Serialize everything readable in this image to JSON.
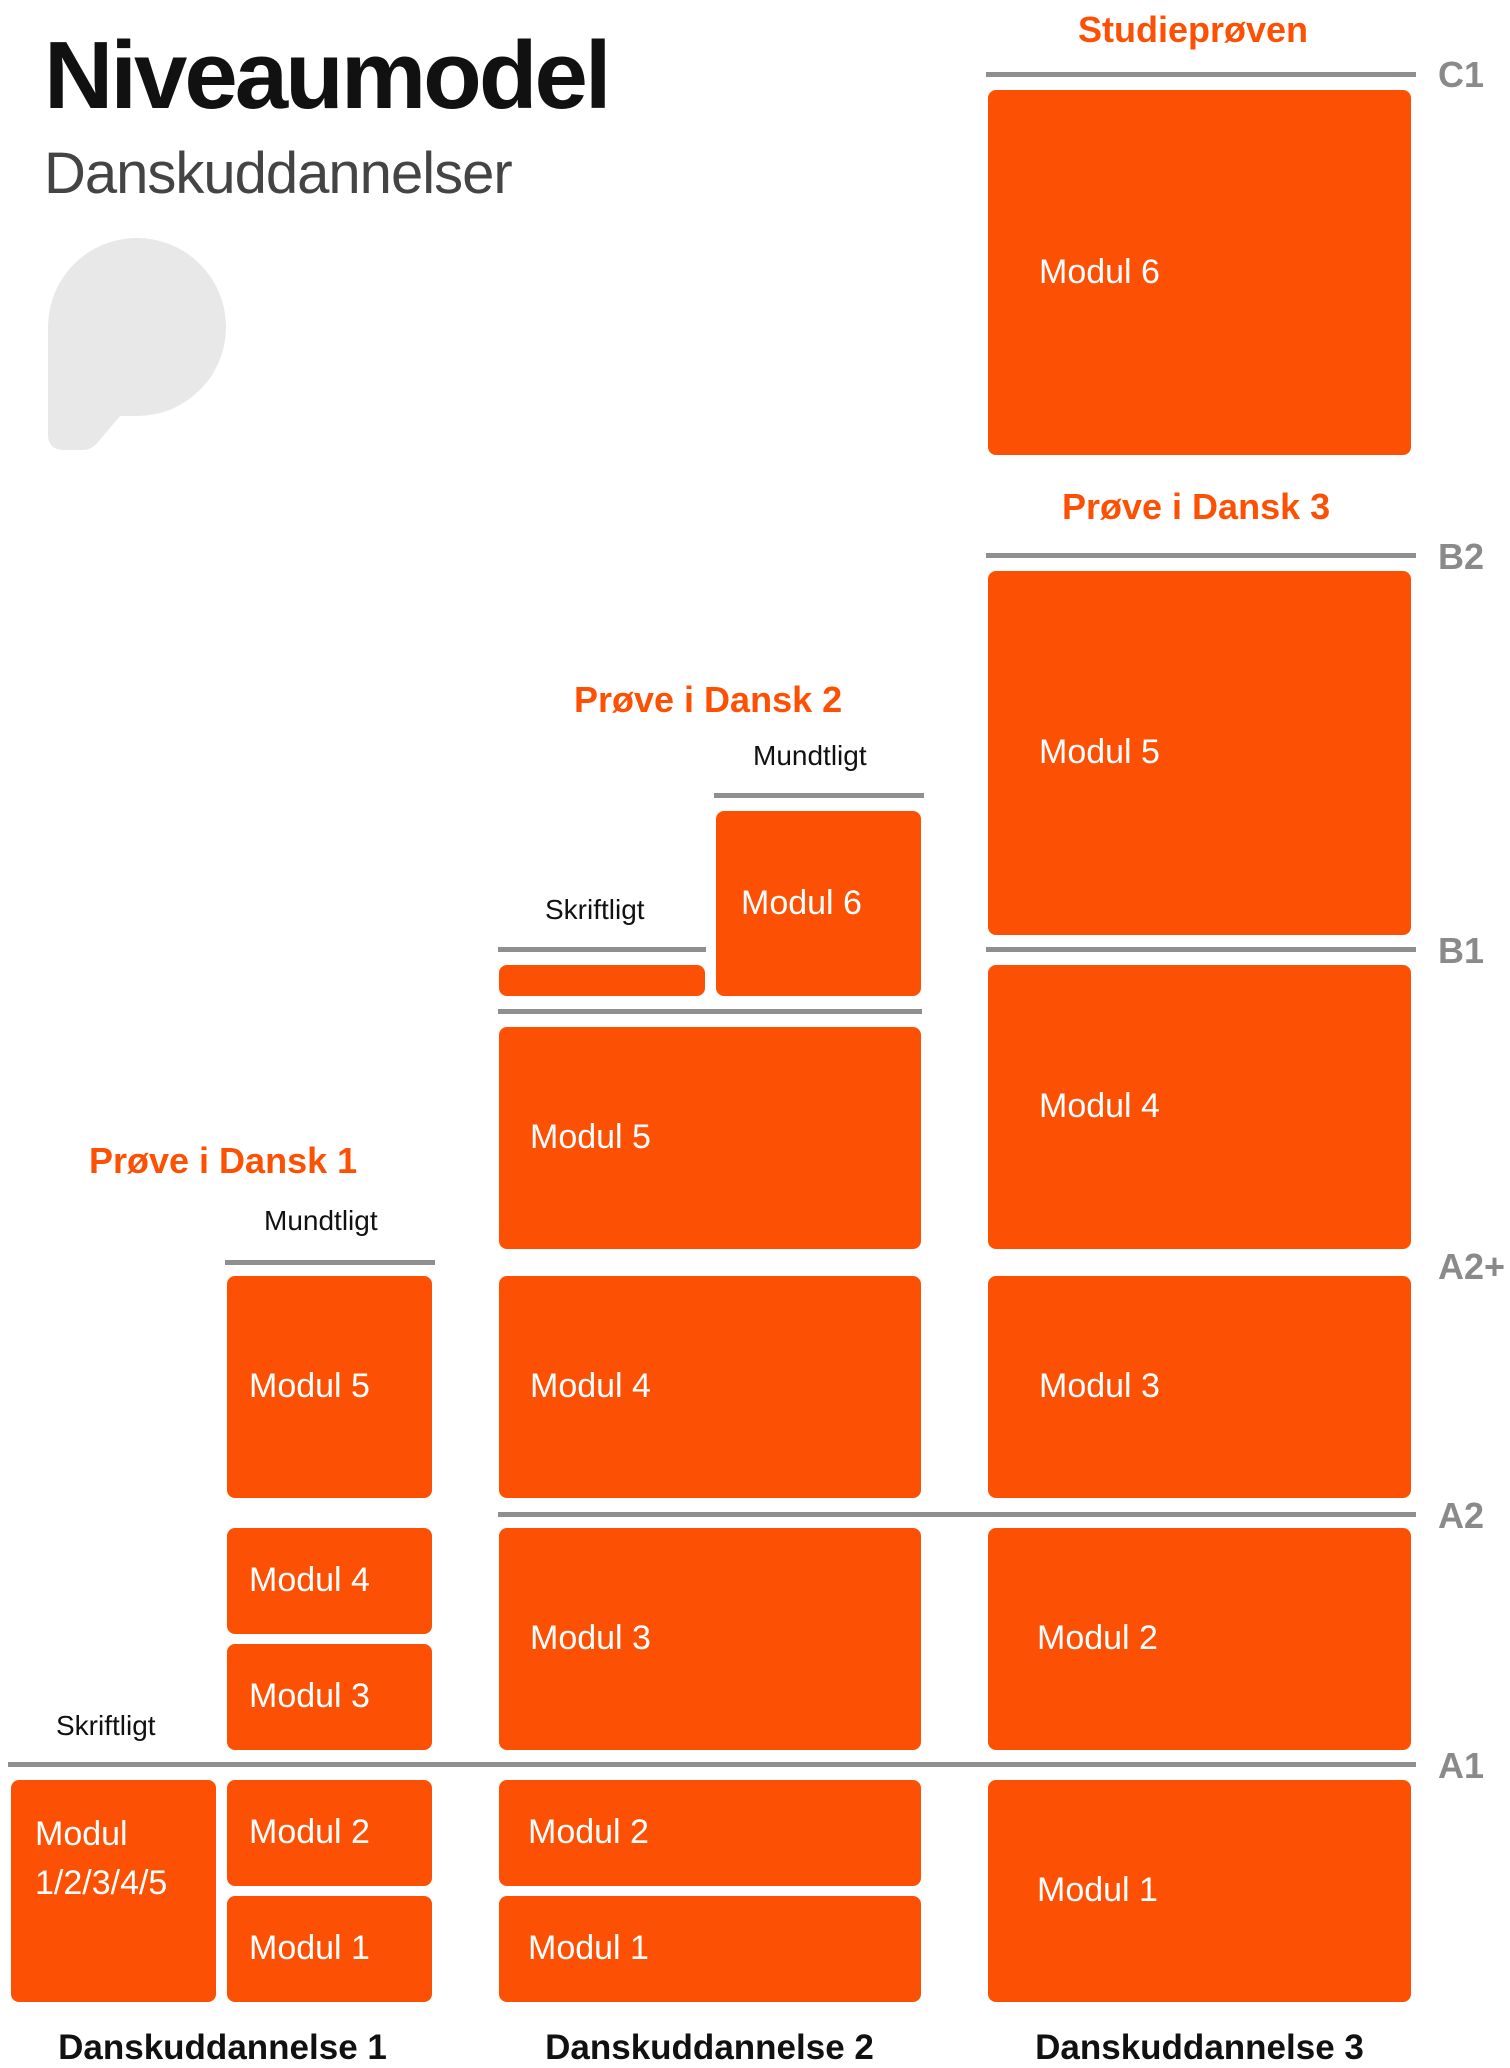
{
  "header": {
    "title": "Niveaumodel",
    "subtitle": "Danskuddannelser"
  },
  "colors": {
    "accent": "#fc5104",
    "line": "#8f8f8f",
    "logo": "#e8e8e8",
    "text": "#111111"
  },
  "levels": {
    "c1": "C1",
    "b2": "B2",
    "b1": "B1",
    "a2plus": "A2+",
    "a2": "A2",
    "a1": "A1"
  },
  "exams": {
    "studieproven": "Studieprøven",
    "dansk3": "Prøve i Dansk 3",
    "dansk2": "Prøve i Dansk 2",
    "dansk1": "Prøve i Dansk 1"
  },
  "exam_parts": {
    "du2_mundtligt": "Mundtligt",
    "du2_skriftligt": "Skriftligt",
    "du1_mundtligt": "Mundtligt",
    "du1_skriftligt": "Skriftligt"
  },
  "modules": {
    "du1_combined_line1": "Modul",
    "du1_combined_line2": "1/2/3/4/5",
    "du1_m1": "Modul 1",
    "du1_m2": "Modul 2",
    "du1_m3": "Modul 3",
    "du1_m4": "Modul 4",
    "du1_m5": "Modul 5",
    "du2_m1": "Modul 1",
    "du2_m2": "Modul 2",
    "du2_m3": "Modul 3",
    "du2_m4": "Modul 4",
    "du2_m5": "Modul 5",
    "du2_m6": "Modul 6",
    "du3_m1": "Modul 1",
    "du3_m2": "Modul 2",
    "du3_m3": "Modul 3",
    "du3_m4": "Modul 4",
    "du3_m5": "Modul 5",
    "du3_m6": "Modul 6"
  },
  "columns": {
    "du1": "Danskuddannelse 1",
    "du2": "Danskuddannelse 2",
    "du3": "Danskuddannelse 3"
  }
}
